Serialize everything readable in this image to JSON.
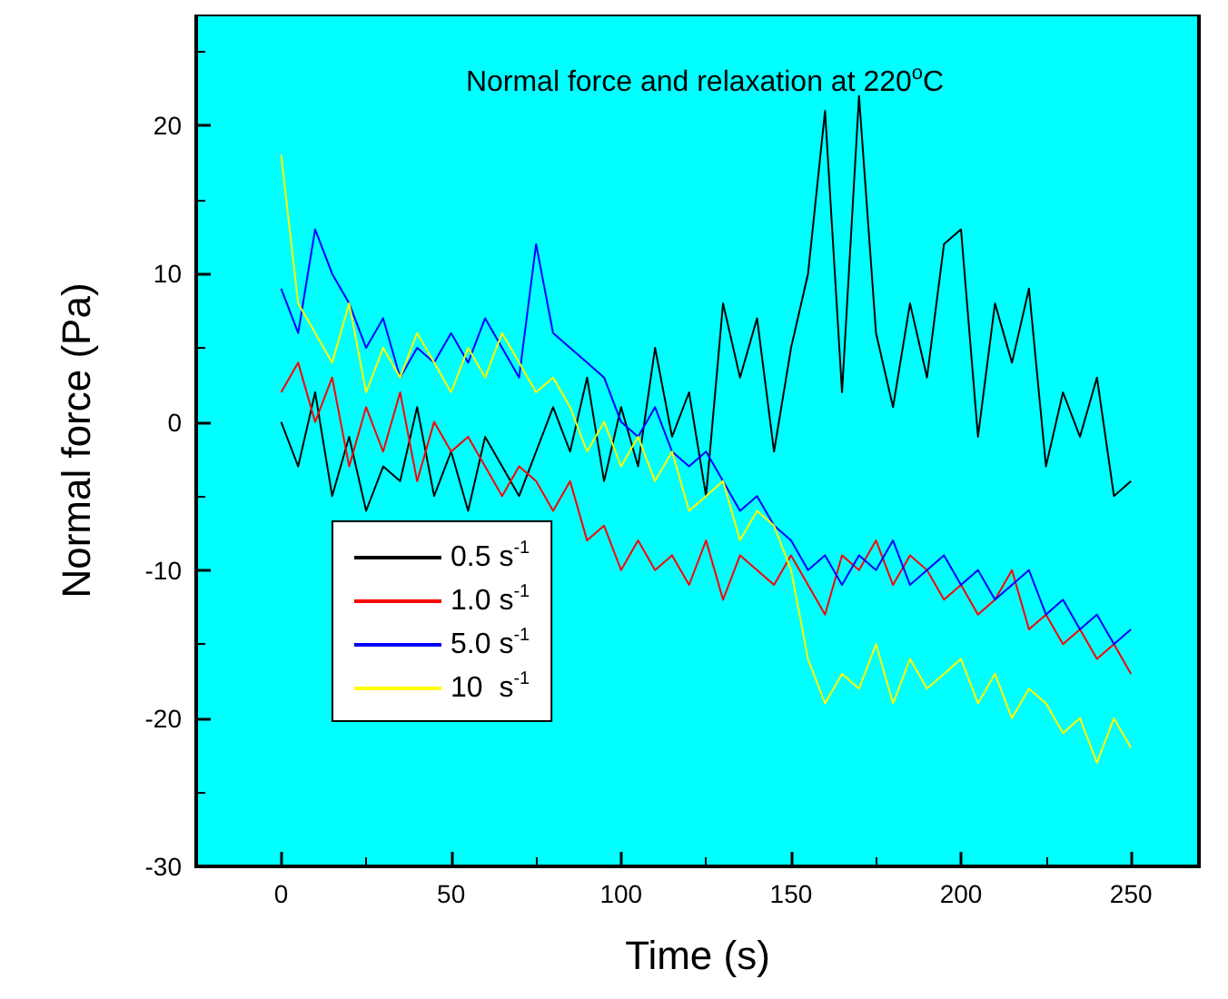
{
  "chart_data": {
    "type": "line",
    "title": "Normal force and relaxation at 220$^{o}$C",
    "xlabel": "Time (s)",
    "ylabel": "Normal force (Pa)",
    "x": [
      0,
      5,
      10,
      15,
      20,
      25,
      30,
      35,
      40,
      45,
      50,
      55,
      60,
      65,
      70,
      75,
      80,
      85,
      90,
      95,
      100,
      105,
      110,
      115,
      120,
      125,
      130,
      135,
      140,
      145,
      150,
      155,
      160,
      165,
      170,
      175,
      180,
      185,
      190,
      195,
      200,
      205,
      210,
      215,
      220,
      225,
      230,
      235,
      240,
      245,
      250
    ],
    "series": [
      {
        "name": "0.5 s$^{-1}$",
        "color": "#000000",
        "values": [
          0,
          -3,
          2,
          -5,
          -1,
          -6,
          -3,
          -4,
          1,
          -5,
          -2,
          -6,
          -1,
          -3,
          -5,
          -2,
          1,
          -2,
          3,
          -4,
          1,
          -3,
          5,
          -1,
          2,
          -5,
          8,
          3,
          7,
          -2,
          5,
          10,
          21,
          2,
          22,
          6,
          1,
          8,
          3,
          12,
          13,
          -1,
          8,
          4,
          9,
          -3,
          2,
          -1,
          3,
          -5,
          -4
        ]
      },
      {
        "name": "1.0 s$^{-1}$",
        "color": "#ff0000",
        "values": [
          2,
          4,
          0,
          3,
          -3,
          1,
          -2,
          2,
          -4,
          0,
          -2,
          -1,
          -3,
          -5,
          -3,
          -4,
          -6,
          -4,
          -8,
          -7,
          -10,
          -8,
          -10,
          -9,
          -11,
          -8,
          -12,
          -9,
          -10,
          -11,
          -9,
          -11,
          -13,
          -9,
          -10,
          -8,
          -11,
          -9,
          -10,
          -12,
          -11,
          -13,
          -12,
          -10,
          -14,
          -13,
          -15,
          -14,
          -16,
          -15,
          -17
        ]
      },
      {
        "name": "5.0 s$^{-1}$",
        "color": "#0000ff",
        "values": [
          9,
          6,
          13,
          10,
          8,
          5,
          7,
          3,
          5,
          4,
          6,
          4,
          7,
          5,
          3,
          12,
          6,
          5,
          4,
          3,
          0,
          -1,
          1,
          -2,
          -3,
          -2,
          -4,
          -6,
          -5,
          -7,
          -8,
          -10,
          -9,
          -11,
          -9,
          -10,
          -8,
          -11,
          -10,
          -9,
          -11,
          -10,
          -12,
          -11,
          -10,
          -13,
          -12,
          -14,
          -13,
          -15,
          -14
        ]
      },
      {
        "name": "10  s$^{-1}$",
        "color": "#ffff00",
        "values": [
          18,
          8,
          6,
          4,
          8,
          2,
          5,
          3,
          6,
          4,
          2,
          5,
          3,
          6,
          4,
          2,
          3,
          1,
          -2,
          0,
          -3,
          -1,
          -4,
          -2,
          -6,
          -5,
          -4,
          -8,
          -6,
          -7,
          -10,
          -16,
          -19,
          -17,
          -18,
          -15,
          -19,
          -16,
          -18,
          -17,
          -16,
          -19,
          -17,
          -20,
          -18,
          -19,
          -21,
          -20,
          -23,
          -20,
          -22
        ]
      }
    ],
    "xlim": [
      -25,
      270
    ],
    "xticks": [
      0,
      50,
      100,
      150,
      200,
      250
    ],
    "ylim": [
      -30,
      27.5
    ],
    "yticks": [
      -30,
      -20,
      -10,
      0,
      10,
      20
    ],
    "grid": false,
    "legend": "bottom left",
    "marker": "none",
    "line_style": "solid"
  }
}
